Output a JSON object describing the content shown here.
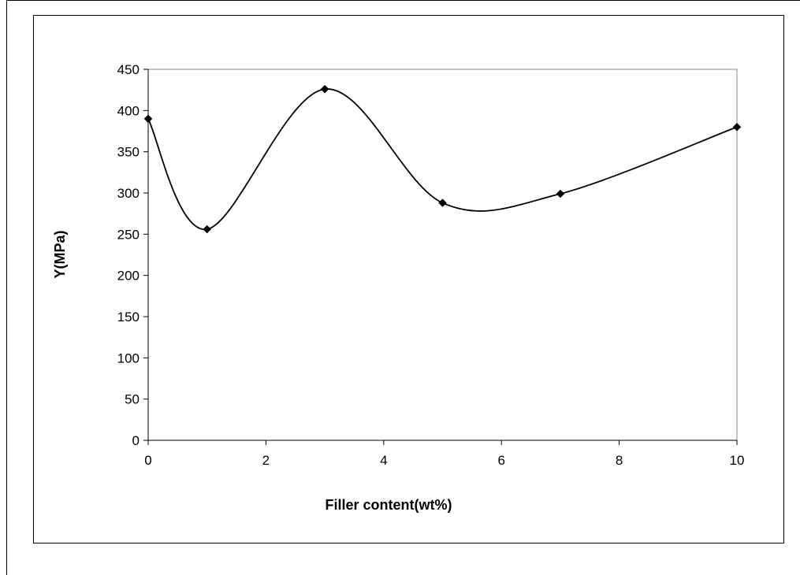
{
  "chart_data": {
    "type": "line",
    "title": "",
    "xlabel": "Filler content(wt%)",
    "ylabel": "Y(MPa)",
    "xlim": [
      0,
      10
    ],
    "ylim": [
      0,
      450
    ],
    "x_ticks": [
      0,
      2,
      4,
      6,
      8,
      10
    ],
    "y_ticks": [
      0,
      50,
      100,
      150,
      200,
      250,
      300,
      350,
      400,
      450
    ],
    "smoothed": true,
    "marker": "diamond",
    "grid": false,
    "legend": "none",
    "series": [
      {
        "color": "#000000",
        "x": [
          0,
          1,
          3,
          5,
          7,
          10
        ],
        "y": [
          390,
          256,
          426,
          288,
          299,
          380
        ]
      }
    ]
  }
}
